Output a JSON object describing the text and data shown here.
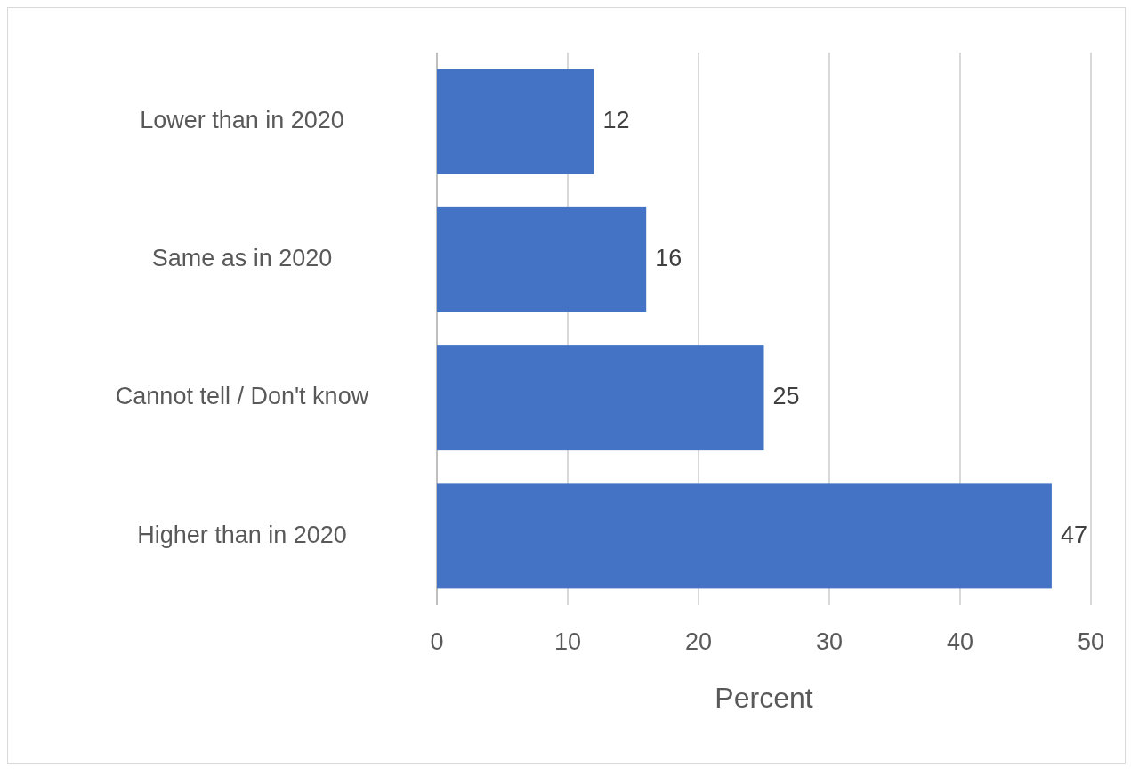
{
  "chart_data": {
    "type": "bar",
    "orientation": "horizontal",
    "categories": [
      "Lower than in 2020",
      "Same as in 2020",
      "Cannot tell / Don't know",
      "Higher than in 2020"
    ],
    "values": [
      12,
      16,
      25,
      47
    ],
    "color": "#4472c4",
    "xlabel": "Percent",
    "xlim": [
      0,
      50
    ],
    "xticks": [
      0,
      10,
      20,
      30,
      40,
      50
    ],
    "grid": "x",
    "data_labels": true
  }
}
